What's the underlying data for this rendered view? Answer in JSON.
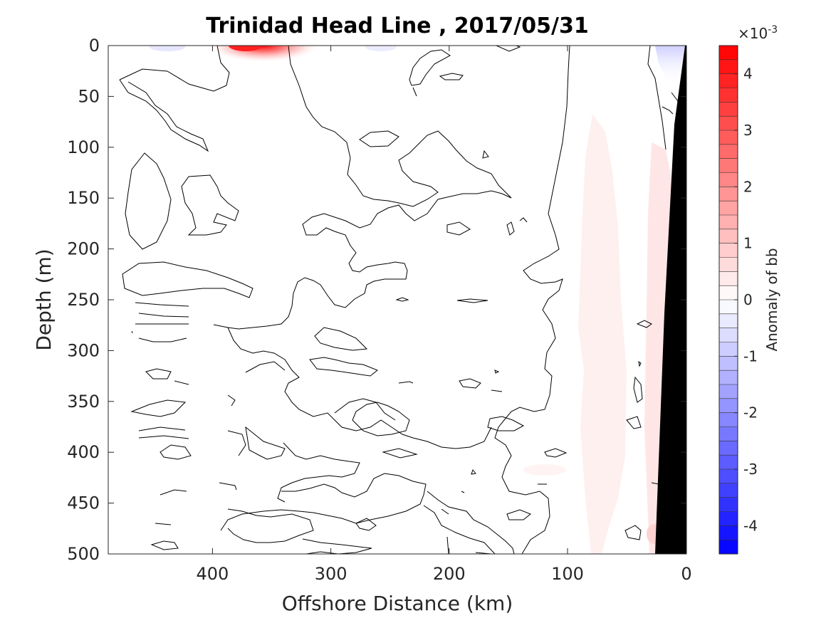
{
  "chart_data": {
    "type": "contour",
    "title": "Trinidad Head Line , 2017/05/31",
    "xlabel": "Offshore Distance (km)",
    "ylabel": "Depth (m)",
    "x_axis_direction": "reversed",
    "xlim": [
      490,
      0
    ],
    "ylim": [
      0,
      500
    ],
    "y_axis_direction": "reversed",
    "x_ticks": [
      400,
      300,
      200,
      100,
      0
    ],
    "x_tick_labels": [
      "400",
      "300",
      "200",
      "100",
      "0"
    ],
    "y_ticks": [
      0,
      50,
      100,
      150,
      200,
      250,
      300,
      350,
      400,
      450,
      500
    ],
    "y_tick_labels": [
      "0",
      "50",
      "100",
      "150",
      "200",
      "250",
      "300",
      "350",
      "400",
      "450",
      "500"
    ],
    "colorbar": {
      "label": "Anomaly of bb",
      "exponent_label": "×10",
      "exponent_power": "-3",
      "range": [
        -4.5,
        4.5
      ],
      "ticks": [
        4,
        3,
        2,
        1,
        0,
        -1,
        -2,
        -3,
        -4
      ],
      "tick_labels": [
        "4",
        "3",
        "2",
        "1",
        "0",
        "-1",
        "-2",
        "-3",
        "-4"
      ],
      "colormap": "blue-white-red",
      "levels": 36
    },
    "features": [
      {
        "name": "surface-maximum",
        "x_km": 375,
        "depth_m": 0,
        "value": 4.5
      },
      {
        "name": "nearshore-positive-band",
        "x_range_km": [
          20,
          90
        ],
        "depth_range_m": [
          50,
          500
        ],
        "value": 0.5
      },
      {
        "name": "bottom-topography",
        "x_range_km": [
          0,
          25
        ],
        "depth_range_m": [
          0,
          500
        ],
        "fill": "black"
      }
    ],
    "grid": false
  },
  "colors": {
    "positive": "#ff0000",
    "negative": "#0000ff",
    "zero": "#ffffff",
    "topography": "#000000",
    "contour_line": "#000000"
  }
}
